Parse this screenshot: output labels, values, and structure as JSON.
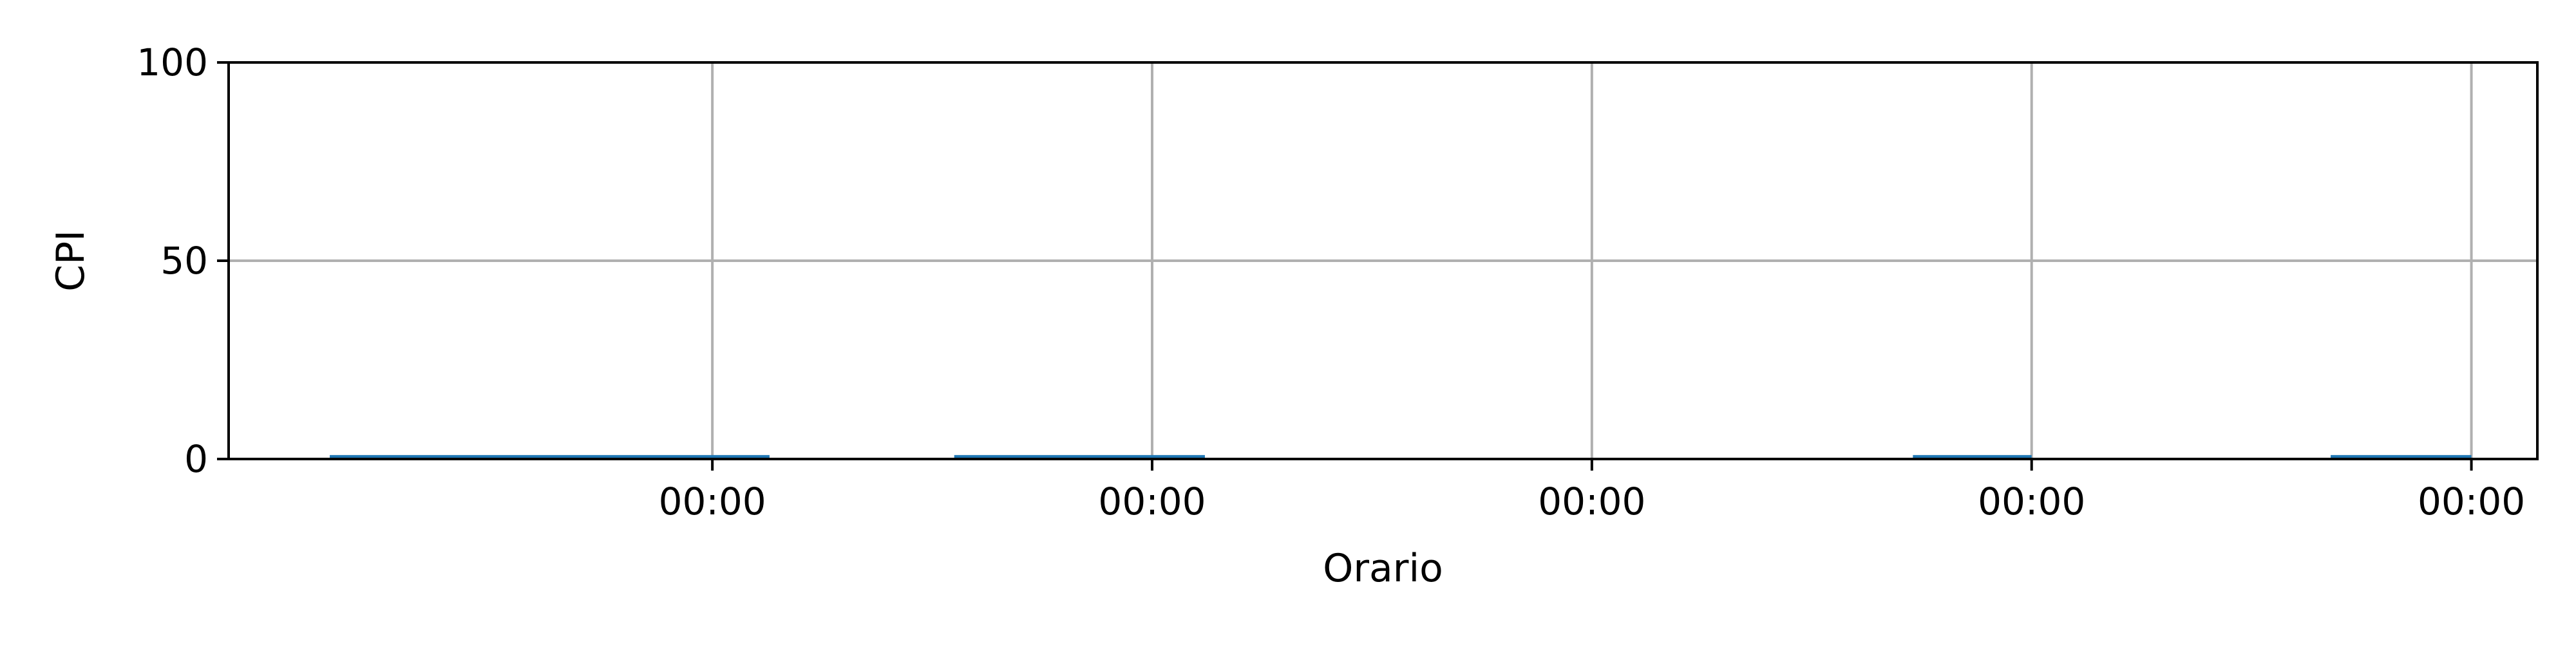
{
  "chart_data": {
    "type": "bar",
    "title": "",
    "xlabel": "Orario",
    "ylabel": "CPI",
    "ylim": [
      0,
      100
    ],
    "yticks": [
      0,
      50,
      100
    ],
    "xticks": [
      "00:00",
      "00:00",
      "00:00",
      "00:00",
      "00:00"
    ],
    "grid": true,
    "bars": [
      {
        "x_start": -0.87,
        "x_end": 0.13,
        "value": 1
      },
      {
        "x_start": 0.55,
        "x_end": 1.12,
        "value": 1
      },
      {
        "x_start": 2.73,
        "x_end": 3.0,
        "value": 1
      },
      {
        "x_start": 3.68,
        "x_end": 4.0,
        "value": 1
      }
    ],
    "colors": {
      "bar": "#1f77b4",
      "grid": "#b0b0b0",
      "axis": "#000000"
    }
  }
}
